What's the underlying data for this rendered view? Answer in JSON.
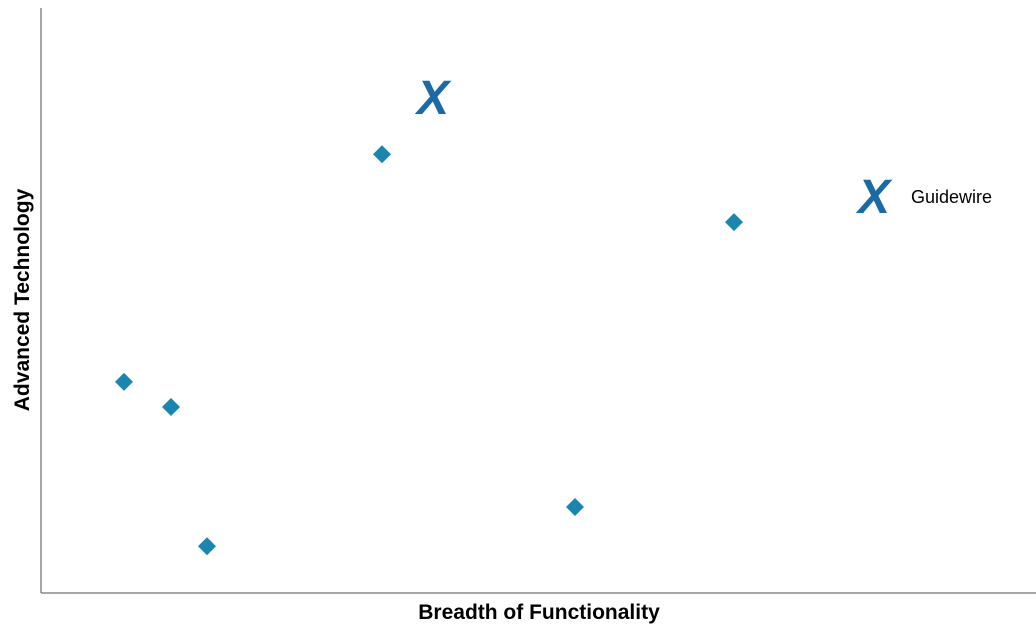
{
  "chart_data": {
    "type": "scatter",
    "xlabel": "Breadth of Functionality",
    "ylabel": "Advanced Technology",
    "xlim": [
      0,
      100
    ],
    "ylim": [
      0,
      100
    ],
    "grid": false,
    "legend": {
      "position": "right",
      "marker": "X",
      "label": "Guidewire"
    },
    "series": [
      {
        "marker": "diamond",
        "color": "#1A86B0",
        "points": [
          {
            "x": 8.3,
            "y": 36.1
          },
          {
            "x": 13.0,
            "y": 31.8
          },
          {
            "x": 16.6,
            "y": 8.0
          },
          {
            "x": 34.1,
            "y": 75.0
          },
          {
            "x": 53.4,
            "y": 14.7
          },
          {
            "x": 69.3,
            "y": 63.4
          }
        ]
      },
      {
        "name": "Guidewire",
        "marker": "X",
        "color": "#1B6AA6",
        "points": [
          {
            "x": 39.2,
            "y": 84.8
          }
        ]
      }
    ]
  }
}
